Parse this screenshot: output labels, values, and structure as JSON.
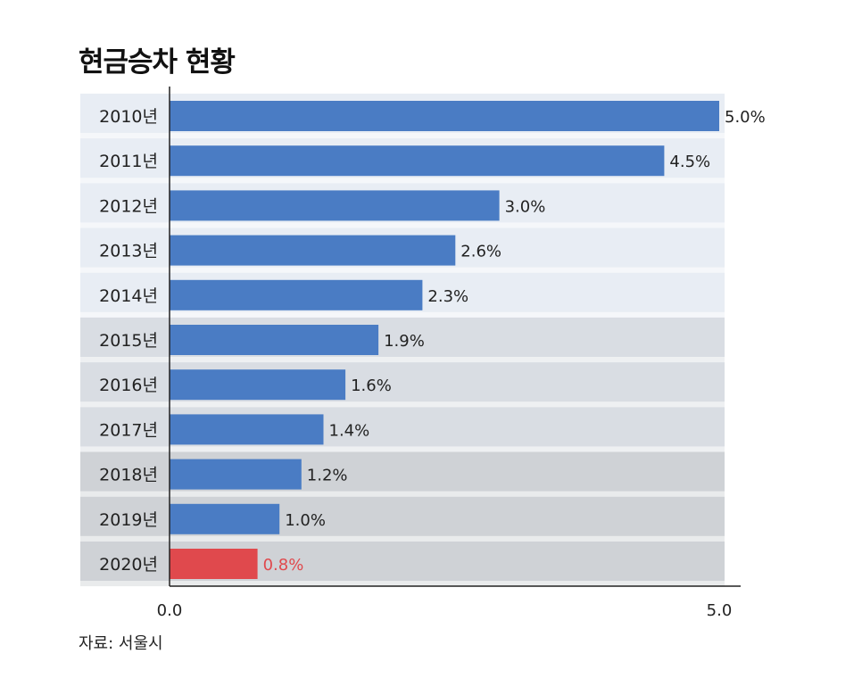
{
  "chart_data": {
    "type": "bar",
    "orientation": "horizontal",
    "title": "현금승차 현황",
    "categories": [
      "2010년",
      "2011년",
      "2012년",
      "2013년",
      "2014년",
      "2015년",
      "2016년",
      "2017년",
      "2018년",
      "2019년",
      "2020년"
    ],
    "values": [
      5.0,
      4.5,
      3.0,
      2.6,
      2.3,
      1.9,
      1.6,
      1.4,
      1.2,
      1.0,
      0.8
    ],
    "value_labels": [
      "5.0%",
      "4.5%",
      "3.0%",
      "2.6%",
      "2.3%",
      "1.9%",
      "1.6%",
      "1.4%",
      "1.2%",
      "1.0%",
      "0.8%"
    ],
    "highlight_index": 10,
    "xlim": [
      0,
      5.0
    ],
    "x_ticks": [
      "0.0",
      "5.0"
    ],
    "xlabel": "",
    "ylabel": "",
    "source": "자료: 서울시"
  },
  "colors": {
    "bar": "#4a7cc4",
    "highlight_bar": "#e0494d",
    "label": "#222222",
    "highlight_label": "#e0494d",
    "band_light": "#e8edf4",
    "band_mid": "#d9dde3",
    "band_dark": "#cfd2d6"
  }
}
